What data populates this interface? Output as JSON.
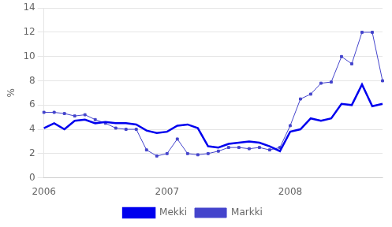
{
  "chart_data": {
    "type": "line",
    "ylabel": "%",
    "categories": [
      "2006",
      null,
      null,
      null,
      null,
      null,
      null,
      null,
      null,
      null,
      null,
      null,
      "2007",
      null,
      null,
      null,
      null,
      null,
      null,
      null,
      null,
      null,
      null,
      null,
      "2008",
      null,
      null,
      null,
      null,
      null,
      null,
      null,
      null,
      null
    ],
    "series": [
      {
        "name": "Mekki",
        "color": "#0000ee",
        "marker": "none",
        "line_style": "solid",
        "values": [
          4.1,
          4.5,
          4.0,
          4.7,
          4.8,
          4.5,
          4.6,
          4.5,
          4.5,
          4.4,
          3.9,
          3.7,
          3.8,
          4.3,
          4.4,
          4.1,
          2.6,
          2.5,
          2.8,
          2.9,
          3.0,
          2.9,
          2.6,
          2.2,
          3.8,
          4.0,
          4.9,
          4.7,
          4.9,
          6.1,
          6.0,
          7.7,
          5.9,
          6.1
        ]
      },
      {
        "name": "Markki",
        "color": "#4444cc",
        "marker": "square",
        "line_style": "solid",
        "values": [
          5.4,
          5.4,
          5.3,
          5.1,
          5.2,
          4.8,
          4.5,
          4.1,
          4.0,
          4.0,
          2.3,
          1.8,
          2.0,
          3.2,
          2.0,
          1.9,
          2.0,
          2.2,
          2.5,
          2.5,
          2.4,
          2.5,
          2.3,
          2.5,
          4.3,
          6.5,
          6.9,
          7.8,
          7.9,
          10.0,
          9.4,
          12.0,
          12.0,
          8.0
        ]
      }
    ],
    "ylim": [
      0,
      14
    ],
    "yticks": [
      0,
      2,
      4,
      6,
      8,
      10,
      12,
      14
    ],
    "grid": true,
    "legend": "bottom"
  }
}
